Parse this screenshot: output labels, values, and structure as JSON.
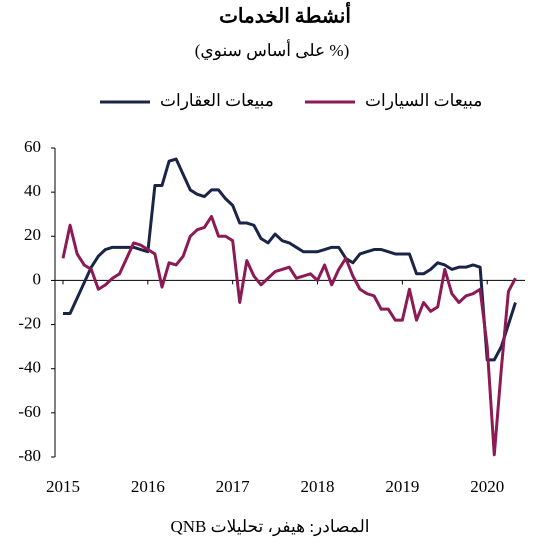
{
  "chart_data": {
    "type": "line",
    "title": "أنشطة الخدمات",
    "subtitle": "(% على أساس سنوي)",
    "source": "المصادر: هيفر، تحليلات QNB",
    "categories": [
      "2015",
      null,
      null,
      null,
      null,
      null,
      null,
      null,
      null,
      null,
      null,
      null,
      "2016",
      null,
      null,
      null,
      null,
      null,
      null,
      null,
      null,
      null,
      null,
      null,
      "2017",
      null,
      null,
      null,
      null,
      null,
      null,
      null,
      null,
      null,
      null,
      null,
      "2018",
      null,
      null,
      null,
      null,
      null,
      null,
      null,
      null,
      null,
      null,
      null,
      "2019",
      null,
      null,
      null,
      null,
      null,
      null,
      null,
      null,
      null,
      null,
      null,
      "2020",
      null,
      null,
      null,
      null
    ],
    "series": [
      {
        "name": "مبيعات العقارات",
        "color": "#1a2447",
        "values": [
          -15,
          -15,
          -8,
          -1,
          6,
          11,
          14,
          15,
          15,
          15,
          15,
          14,
          13,
          43,
          43,
          54,
          55,
          48,
          41,
          39,
          38,
          41,
          41,
          37,
          34,
          26,
          26,
          25,
          19,
          17,
          21,
          18,
          17,
          15,
          13,
          13,
          13,
          14,
          15,
          15,
          10,
          8,
          12,
          13,
          14,
          14,
          13,
          12,
          12,
          12,
          3,
          3,
          5,
          8,
          7,
          5,
          6,
          6,
          7,
          6,
          -36,
          -36,
          -30,
          -20,
          -10
        ]
      },
      {
        "name": "مبيعات السيارات",
        "color": "#8b1a55",
        "values": [
          10,
          25,
          12,
          7,
          5,
          -4,
          -2,
          1,
          3,
          10,
          17,
          16,
          14,
          12,
          -3,
          8,
          7,
          11,
          20,
          23,
          24,
          29,
          20,
          20,
          18,
          -10,
          9,
          2,
          -2,
          1,
          4,
          5,
          6,
          1,
          2,
          3,
          0,
          7,
          -2,
          5,
          10,
          2,
          -4,
          -6,
          -7,
          -13,
          -13,
          -18,
          -18,
          -4,
          -18,
          -10,
          -14,
          -12,
          5,
          -6,
          -10,
          -7,
          -6,
          -4,
          -30,
          -79,
          -40,
          -5,
          1
        ]
      }
    ],
    "ylim": [
      -80,
      60
    ],
    "yticks": [
      -80,
      -60,
      -40,
      -20,
      0,
      20,
      40,
      60
    ],
    "grid": false,
    "legend": "top"
  }
}
